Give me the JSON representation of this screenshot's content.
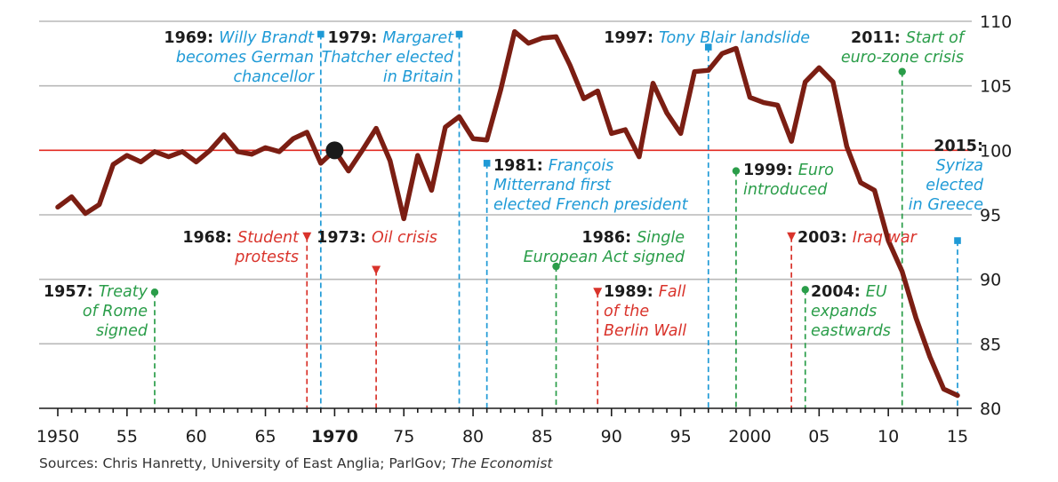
{
  "chart_data": {
    "type": "line",
    "ylim": [
      80,
      110
    ],
    "xlim": [
      1950,
      2015
    ],
    "reference_line": 100,
    "x_ticks": [
      {
        "year": 1950,
        "label": "1950",
        "bold": false
      },
      {
        "year": 1955,
        "label": "55",
        "bold": false
      },
      {
        "year": 1960,
        "label": "60",
        "bold": false
      },
      {
        "year": 1965,
        "label": "65",
        "bold": false
      },
      {
        "year": 1970,
        "label": "1970",
        "bold": true
      },
      {
        "year": 1975,
        "label": "75",
        "bold": false
      },
      {
        "year": 1980,
        "label": "80",
        "bold": false
      },
      {
        "year": 1985,
        "label": "85",
        "bold": false
      },
      {
        "year": 1990,
        "label": "90",
        "bold": false
      },
      {
        "year": 1995,
        "label": "95",
        "bold": false
      },
      {
        "year": 2000,
        "label": "2000",
        "bold": false
      },
      {
        "year": 2005,
        "label": "05",
        "bold": false
      },
      {
        "year": 2010,
        "label": "10",
        "bold": false
      },
      {
        "year": 2015,
        "label": "15",
        "bold": false
      }
    ],
    "y_ticks": [
      80,
      85,
      90,
      95,
      100,
      105,
      110
    ],
    "series": [
      {
        "color": "#7b1e13",
        "highlight": {
          "year": 1970,
          "value": 100
        },
        "points": [
          [
            1950,
            95.6
          ],
          [
            1951,
            96.4
          ],
          [
            1952,
            95.1
          ],
          [
            1953,
            95.8
          ],
          [
            1954,
            98.9
          ],
          [
            1955,
            99.6
          ],
          [
            1956,
            99.1
          ],
          [
            1957,
            99.9
          ],
          [
            1958,
            99.5
          ],
          [
            1959,
            99.9
          ],
          [
            1960,
            99.1
          ],
          [
            1961,
            100.0
          ],
          [
            1962,
            101.2
          ],
          [
            1963,
            99.9
          ],
          [
            1964,
            99.7
          ],
          [
            1965,
            100.2
          ],
          [
            1966,
            99.9
          ],
          [
            1967,
            100.9
          ],
          [
            1968,
            101.4
          ],
          [
            1969,
            99.0
          ],
          [
            1970,
            100.0
          ],
          [
            1971,
            98.4
          ],
          [
            1972,
            100.0
          ],
          [
            1973,
            101.7
          ],
          [
            1974,
            99.2
          ],
          [
            1975,
            94.7
          ],
          [
            1976,
            99.6
          ],
          [
            1977,
            96.9
          ],
          [
            1978,
            101.8
          ],
          [
            1979,
            102.6
          ],
          [
            1980,
            100.9
          ],
          [
            1981,
            100.8
          ],
          [
            1982,
            104.7
          ],
          [
            1983,
            109.2
          ],
          [
            1984,
            108.3
          ],
          [
            1985,
            108.7
          ],
          [
            1986,
            108.8
          ],
          [
            1987,
            106.6
          ],
          [
            1988,
            104.0
          ],
          [
            1989,
            104.6
          ],
          [
            1990,
            101.3
          ],
          [
            1991,
            101.6
          ],
          [
            1992,
            99.5
          ],
          [
            1993,
            105.2
          ],
          [
            1994,
            102.9
          ],
          [
            1995,
            101.3
          ],
          [
            1996,
            106.1
          ],
          [
            1997,
            106.2
          ],
          [
            1998,
            107.5
          ],
          [
            1999,
            107.9
          ],
          [
            2000,
            104.1
          ],
          [
            2001,
            103.7
          ],
          [
            2002,
            103.5
          ],
          [
            2003,
            100.7
          ],
          [
            2004,
            105.3
          ],
          [
            2005,
            106.4
          ],
          [
            2006,
            105.3
          ],
          [
            2007,
            100.3
          ],
          [
            2008,
            97.5
          ],
          [
            2009,
            96.9
          ],
          [
            2010,
            93.0
          ],
          [
            2011,
            90.6
          ],
          [
            2012,
            87.0
          ],
          [
            2013,
            84.0
          ],
          [
            2014,
            81.5
          ],
          [
            2015,
            81.0
          ]
        ]
      }
    ],
    "events": [
      {
        "id": "1957",
        "year": 1957,
        "category": "europe",
        "color": "#2a9d49",
        "marker": "circle",
        "marker_value": 89.0,
        "line_to": 80,
        "year_label": "1957:",
        "lines": [
          "Treaty",
          "of Rome",
          "signed"
        ]
      },
      {
        "id": "1968",
        "year": 1968,
        "category": "unrest",
        "color": "#d9332b",
        "marker": "triangle",
        "marker_value": 93.3,
        "line_to": 80,
        "year_label": "1968:",
        "lines": [
          "Student",
          "protests"
        ]
      },
      {
        "id": "1969",
        "year": 1969,
        "category": "election",
        "color": "#1f9ad6",
        "marker": "square",
        "marker_value": 109.0,
        "line_to": 80,
        "year_label": "1969:",
        "lines": [
          "Willy Brandt",
          "becomes German",
          "chancellor"
        ]
      },
      {
        "id": "1973",
        "year": 1973,
        "category": "unrest",
        "color": "#d9332b",
        "marker": "triangle",
        "marker_value": 90.7,
        "line_to": 80,
        "year_label": "1973:",
        "lines": [
          "Oil crisis"
        ]
      },
      {
        "id": "1979",
        "year": 1979,
        "category": "election",
        "color": "#1f9ad6",
        "marker": "square",
        "marker_value": 109.0,
        "line_to": 80,
        "year_label": "1979:",
        "lines": [
          "Margaret",
          "Thatcher elected",
          "in Britain"
        ]
      },
      {
        "id": "1981",
        "year": 1981,
        "category": "election",
        "color": "#1f9ad6",
        "marker": "square",
        "marker_value": 99.0,
        "line_to": 80,
        "year_label": "1981:",
        "lines": [
          "François",
          "Mitterrand first",
          "elected French president"
        ]
      },
      {
        "id": "1986",
        "year": 1986,
        "category": "europe",
        "color": "#2a9d49",
        "marker": "circle",
        "marker_value": 91.0,
        "line_to": 80,
        "year_label": "1986:",
        "lines": [
          "Single",
          "European Act signed"
        ]
      },
      {
        "id": "1989",
        "year": 1989,
        "category": "unrest",
        "color": "#d9332b",
        "marker": "triangle",
        "marker_value": 89.0,
        "line_to": 80,
        "year_label": "1989:",
        "lines": [
          "Fall",
          "of the",
          "Berlin Wall"
        ]
      },
      {
        "id": "1997",
        "year": 1997,
        "category": "election",
        "color": "#1f9ad6",
        "marker": "square",
        "marker_value": 108.0,
        "line_to": 80,
        "year_label": "1997:",
        "lines": [
          "Tony Blair landslide"
        ]
      },
      {
        "id": "1999",
        "year": 1999,
        "category": "europe",
        "color": "#2a9d49",
        "marker": "circle",
        "marker_value": 98.4,
        "line_to": 80,
        "year_label": "1999:",
        "lines": [
          "Euro",
          "introduced"
        ]
      },
      {
        "id": "2003",
        "year": 2003,
        "category": "unrest",
        "color": "#d9332b",
        "marker": "triangle",
        "marker_value": 93.3,
        "line_to": 80,
        "year_label": "2003:",
        "lines": [
          "Iraq war"
        ]
      },
      {
        "id": "2004",
        "year": 2004,
        "category": "europe",
        "color": "#2a9d49",
        "marker": "circle",
        "marker_value": 89.2,
        "line_to": 80,
        "year_label": "2004:",
        "lines": [
          "EU",
          "expands",
          "eastwards"
        ]
      },
      {
        "id": "2011",
        "year": 2011,
        "category": "europe",
        "color": "#2a9d49",
        "marker": "circle",
        "marker_value": 106.1,
        "line_to": 80,
        "year_label": "2011:",
        "lines": [
          "Start of",
          "euro-zone crisis"
        ]
      },
      {
        "id": "2015",
        "year": 2015,
        "category": "election",
        "color": "#1f9ad6",
        "marker": "square",
        "marker_value": 93.0,
        "line_to": 80,
        "year_label": "2015:",
        "lines": [
          "Syriza",
          "elected",
          "in Greece"
        ]
      }
    ]
  },
  "source": {
    "prefix": "Sources: Chris Hanretty, University of East Anglia; ParlGov; ",
    "emphasis": "The Economist"
  }
}
